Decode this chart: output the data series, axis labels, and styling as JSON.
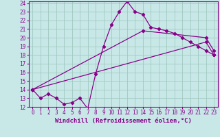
{
  "bg_color": "#c8e8e8",
  "line_color": "#880088",
  "xlim": [
    -0.5,
    23.5
  ],
  "ylim": [
    12,
    24.2
  ],
  "yticks": [
    12,
    13,
    14,
    15,
    16,
    17,
    18,
    19,
    20,
    21,
    22,
    23,
    24
  ],
  "xticks": [
    0,
    1,
    2,
    3,
    4,
    5,
    6,
    7,
    8,
    9,
    10,
    11,
    12,
    13,
    14,
    15,
    16,
    17,
    18,
    19,
    20,
    21,
    22,
    23
  ],
  "line1_x": [
    0,
    1,
    2,
    3,
    4,
    5,
    6,
    7,
    8,
    9,
    10,
    11,
    12,
    13,
    14,
    15,
    16,
    17,
    18,
    19,
    20,
    21,
    22,
    23
  ],
  "line1_y": [
    14.0,
    13.0,
    13.5,
    13.0,
    12.3,
    12.5,
    13.0,
    11.8,
    15.8,
    19.0,
    21.5,
    23.0,
    24.2,
    23.0,
    22.7,
    21.2,
    21.0,
    20.8,
    20.5,
    20.0,
    19.5,
    19.0,
    18.5,
    18.0
  ],
  "line2_x": [
    0,
    14,
    22,
    23
  ],
  "line2_y": [
    14.0,
    20.8,
    20.0,
    18.5
  ],
  "line3_x": [
    0,
    22,
    23
  ],
  "line3_y": [
    14.0,
    19.5,
    18.0
  ],
  "xlabel": "Windchill (Refroidissement éolien,°C)",
  "tick_fontsize": 5.5,
  "label_fontsize": 6.5,
  "grid_color": "#a0c8c0",
  "marker": "D",
  "marker_size": 2.2,
  "linewidth": 0.9
}
